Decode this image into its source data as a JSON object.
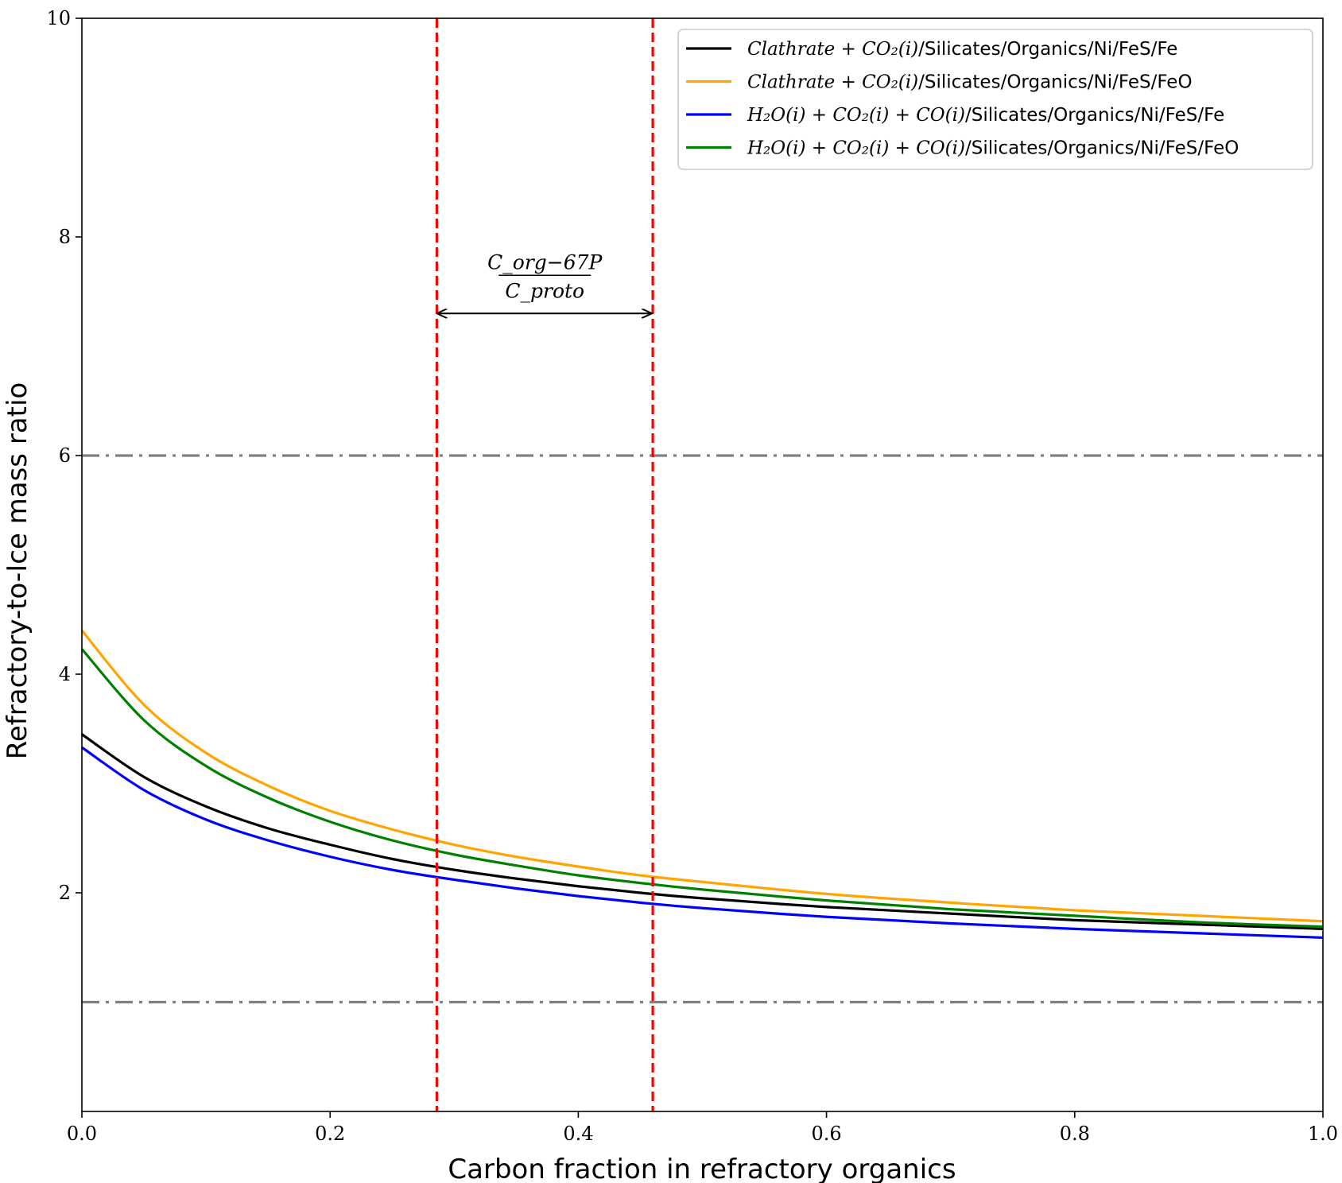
{
  "chart_data": {
    "type": "line",
    "title": "",
    "xlabel": "Carbon fraction in refractory organics",
    "ylabel": "Refractory-to-Ice mass ratio",
    "xlim": [
      0.0,
      1.0
    ],
    "ylim": [
      0.0,
      10.0
    ],
    "xticks": [
      0.0,
      0.2,
      0.4,
      0.6,
      0.8,
      1.0
    ],
    "xtick_labels": [
      "0.0",
      "0.2",
      "0.4",
      "0.6",
      "0.8",
      "1.0"
    ],
    "yticks": [
      2,
      4,
      6,
      8,
      10
    ],
    "ytick_labels": [
      "2",
      "4",
      "6",
      "8",
      "10"
    ],
    "grid": false,
    "legend_position": "top-right",
    "x": [
      0.0,
      0.05,
      0.1,
      0.15,
      0.2,
      0.25,
      0.3,
      0.35,
      0.4,
      0.45,
      0.5,
      0.6,
      0.7,
      0.8,
      0.9,
      1.0
    ],
    "series": [
      {
        "name": "Clathrate + CO2(i)/Silicates/Organics/Ni/FeS/Fe",
        "legend_math": "Clathrate + CO₂(i)",
        "legend_rest": "/Silicates/Organics/Ni/FeS/Fe",
        "color": "#000000",
        "values": [
          3.45,
          3.06,
          2.79,
          2.59,
          2.44,
          2.31,
          2.21,
          2.13,
          2.06,
          2.0,
          1.95,
          1.87,
          1.81,
          1.75,
          1.71,
          1.67
        ]
      },
      {
        "name": "Clathrate + CO2(i)/Silicates/Organics/Ni/FeS/FeO",
        "legend_math": "Clathrate + CO₂(i)",
        "legend_rest": "/Silicates/Organics/Ni/FeS/FeO",
        "color": "#ffa500",
        "values": [
          4.4,
          3.72,
          3.28,
          2.98,
          2.75,
          2.58,
          2.44,
          2.33,
          2.24,
          2.16,
          2.1,
          1.99,
          1.91,
          1.84,
          1.79,
          1.74
        ]
      },
      {
        "name": "H2O(i) + CO2(i) + CO(i)/Silicates/Organics/Ni/FeS/Fe",
        "legend_math": "H₂O(i) + CO₂(i) + CO(i)",
        "legend_rest": "/Silicates/Organics/Ni/FeS/Fe",
        "color": "#0000ff",
        "values": [
          3.33,
          2.94,
          2.67,
          2.48,
          2.33,
          2.21,
          2.12,
          2.04,
          1.97,
          1.91,
          1.86,
          1.78,
          1.72,
          1.67,
          1.63,
          1.59
        ]
      },
      {
        "name": "H2O(i) + CO2(i) + CO(i)/Silicates/Organics/Ni/FeS/FeO",
        "legend_math": "H₂O(i) + CO₂(i) + CO(i)",
        "legend_rest": "/Silicates/Organics/Ni/FeS/FeO",
        "color": "#008000",
        "values": [
          4.23,
          3.58,
          3.16,
          2.87,
          2.65,
          2.48,
          2.35,
          2.25,
          2.16,
          2.09,
          2.03,
          1.93,
          1.85,
          1.79,
          1.73,
          1.69
        ]
      }
    ],
    "hlines": [
      {
        "y": 6.0,
        "color": "#808080",
        "style": "dashdot"
      },
      {
        "y": 1.0,
        "color": "#808080",
        "style": "dashdot"
      }
    ],
    "vlines": [
      {
        "x": 0.286,
        "color": "#ff0000",
        "style": "dashed"
      },
      {
        "x": 0.46,
        "color": "#ff0000",
        "style": "dashed"
      }
    ],
    "annotation": {
      "numerator": "C_org−67P",
      "denominator": "C_proto",
      "arrow_from_x": 0.286,
      "arrow_to_x": 0.46,
      "arrow_y": 7.3
    }
  }
}
